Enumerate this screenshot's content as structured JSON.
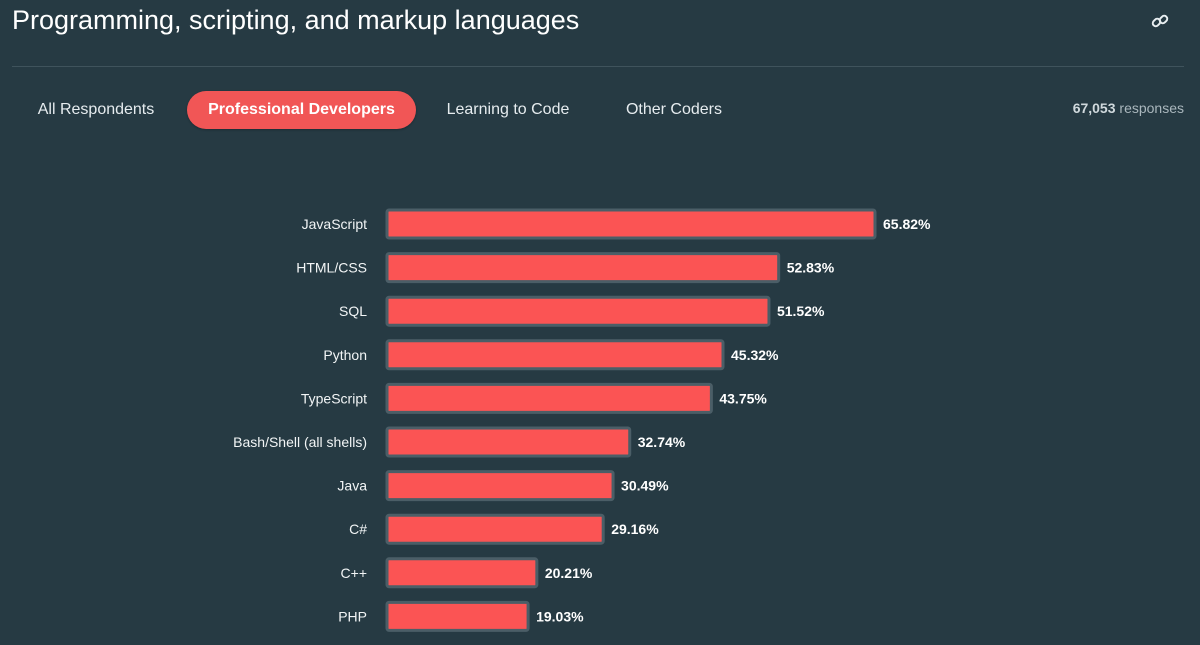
{
  "header": {
    "title": "Programming, scripting, and markup languages",
    "link_icon": "link-icon"
  },
  "tabs": [
    {
      "label": "All Respondents",
      "active": false
    },
    {
      "label": "Professional Developers",
      "active": true
    },
    {
      "label": "Learning to Code",
      "active": false
    },
    {
      "label": "Other Coders",
      "active": false
    }
  ],
  "responses": {
    "count": "67,053",
    "label": "responses"
  },
  "colors": {
    "background": "#263a43",
    "accent": "#f15656",
    "bar": "#fb5454",
    "bar_outline": "#4b5e67"
  },
  "chart_data": {
    "type": "bar",
    "orientation": "horizontal",
    "categories": [
      "JavaScript",
      "HTML/CSS",
      "SQL",
      "Python",
      "TypeScript",
      "Bash/Shell (all shells)",
      "Java",
      "C#",
      "C++",
      "PHP"
    ],
    "values": [
      65.82,
      52.83,
      51.52,
      45.32,
      43.75,
      32.74,
      30.49,
      29.16,
      20.21,
      19.03
    ],
    "value_labels": [
      "65.82%",
      "52.83%",
      "51.52%",
      "45.32%",
      "43.75%",
      "32.74%",
      "30.49%",
      "29.16%",
      "20.21%",
      "19.03%"
    ],
    "xlim": [
      0,
      65.82
    ],
    "grid": false,
    "legend": "none"
  }
}
